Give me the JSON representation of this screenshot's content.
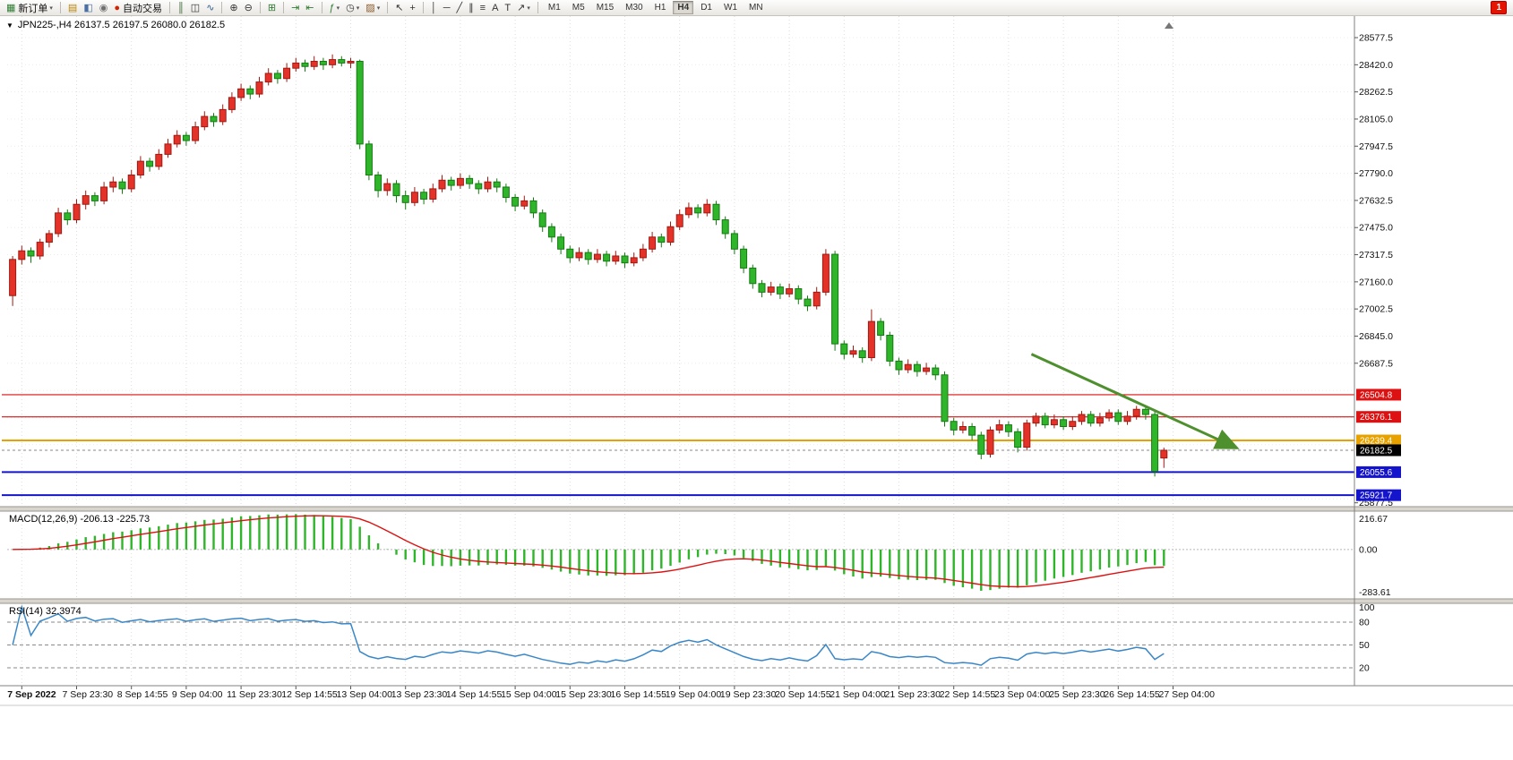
{
  "toolbar": {
    "caret_glyph": "▾",
    "badge": "1",
    "timeframes": [
      "M1",
      "M5",
      "M15",
      "M30",
      "H1",
      "H4",
      "D1",
      "W1",
      "MN"
    ],
    "active_timeframe": "H4",
    "items": [
      {
        "type": "button",
        "name": "new-order-button",
        "icon": "new-order-icon",
        "glyph": "▦",
        "color": "#2e7d32",
        "label": "新订单",
        "caret": true
      },
      {
        "type": "sep"
      },
      {
        "type": "icon",
        "name": "charts-icon",
        "glyph": "▤",
        "color": "#b8860b"
      },
      {
        "type": "icon",
        "name": "profiles-icon",
        "glyph": "◧",
        "color": "#4a6fa5"
      },
      {
        "type": "icon",
        "name": "market-depth-icon",
        "glyph": "◉",
        "color": "#707070"
      },
      {
        "type": "button",
        "name": "auto-trading-button",
        "icon": "auto-trading-icon",
        "glyph": "●",
        "color": "#d42300",
        "label": "自动交易"
      },
      {
        "type": "sep"
      },
      {
        "type": "icon",
        "name": "bar-chart-icon",
        "glyph": "║",
        "color": "#37652f"
      },
      {
        "type": "icon",
        "name": "candlestick-chart-icon",
        "glyph": "◫",
        "color": "#333333"
      },
      {
        "type": "icon",
        "name": "line-chart-icon",
        "glyph": "∿",
        "color": "#2f5e8f"
      },
      {
        "type": "sep"
      },
      {
        "type": "icon",
        "name": "zoom-in-icon",
        "glyph": "⊕",
        "color": "#333333"
      },
      {
        "type": "icon",
        "name": "zoom-out-icon",
        "glyph": "⊖",
        "color": "#333333"
      },
      {
        "type": "sep"
      },
      {
        "type": "icon",
        "name": "tile-windows-icon",
        "glyph": "⊞",
        "color": "#2e7d32"
      },
      {
        "type": "sep"
      },
      {
        "type": "icon",
        "name": "auto-scroll-icon",
        "glyph": "⇥",
        "color": "#2e7d32"
      },
      {
        "type": "icon",
        "name": "chart-shift-icon",
        "glyph": "⇤",
        "color": "#2e7d32"
      },
      {
        "type": "sep"
      },
      {
        "type": "icon",
        "name": "indicators-icon",
        "glyph": "ƒ",
        "color": "#2e7d32",
        "caret": true
      },
      {
        "type": "icon",
        "name": "periods-icon",
        "glyph": "◷",
        "color": "#333333",
        "caret": true
      },
      {
        "type": "icon",
        "name": "templates-icon",
        "glyph": "▨",
        "color": "#8a5a2a",
        "caret": true
      },
      {
        "type": "sep"
      },
      {
        "type": "icon",
        "name": "cursor-icon",
        "glyph": "↖",
        "color": "#333333"
      },
      {
        "type": "icon",
        "name": "crosshair-icon",
        "glyph": "+",
        "color": "#333333"
      },
      {
        "type": "sep"
      },
      {
        "type": "icon",
        "name": "vertical-line-icon",
        "glyph": "│",
        "color": "#333333"
      },
      {
        "type": "icon",
        "name": "horizontal-line-icon",
        "glyph": "─",
        "color": "#333333"
      },
      {
        "type": "icon",
        "name": "trendline-icon",
        "glyph": "╱",
        "color": "#333333"
      },
      {
        "type": "icon",
        "name": "channel-icon",
        "glyph": "∥",
        "color": "#333333"
      },
      {
        "type": "icon",
        "name": "fibonacci-icon",
        "glyph": "≡",
        "color": "#333333"
      },
      {
        "type": "icon",
        "name": "text-icon",
        "glyph": "A",
        "color": "#333333"
      },
      {
        "type": "icon",
        "name": "text-label-icon",
        "glyph": "T",
        "color": "#333333"
      },
      {
        "type": "icon",
        "name": "arrows-icon",
        "glyph": "↗",
        "color": "#333333",
        "caret": true
      },
      {
        "type": "sep"
      },
      {
        "type": "timeframes"
      },
      {
        "type": "spacer"
      },
      {
        "type": "badge"
      }
    ]
  },
  "chart": {
    "title": "JPN225-,H4 26137.5 26197.5 26080.0 26182.5",
    "symbol": "JPN225-",
    "period": "H4",
    "ohlc": {
      "open": "26137.5",
      "high": "26197.5",
      "low": "26080.0",
      "close": "26182.5"
    },
    "collapse_glyph": "▼",
    "macd_label": "MACD(12,26,9) -206.13 -225.73",
    "rsi_label": "RSI(14) 32.3974"
  },
  "chart_data": {
    "type": "candlestick",
    "symbol": "JPN225-",
    "period": "H4",
    "ylim": [
      25855,
      28640
    ],
    "up_color": "#e53228",
    "up_stroke": "#9e1a12",
    "down_color": "#2fb52a",
    "down_stroke": "#157a12",
    "price_axis_labels": [
      "28577.5",
      "28420.0",
      "28262.5",
      "28105.0",
      "27947.5",
      "27790.0",
      "27632.5",
      "27475.0",
      "27317.5",
      "27160.0",
      "27002.5",
      "26845.0",
      "26687.5",
      "25877.5"
    ],
    "time_axis_labels": [
      "7 Sep 2022",
      "7 Sep 23:30",
      "8 Sep 14:55",
      "9 Sep 04:00",
      "11 Sep 23:30",
      "12 Sep 14:55",
      "13 Sep 04:00",
      "13 Sep 23:30",
      "14 Sep 14:55",
      "15 Sep 04:00",
      "15 Sep 23:30",
      "16 Sep 14:55",
      "19 Sep 04:00",
      "19 Sep 23:30",
      "20 Sep 14:55",
      "21 Sep 04:00",
      "21 Sep 23:30",
      "22 Sep 14:55",
      "23 Sep 04:00",
      "25 Sep 23:30",
      "26 Sep 14:55",
      "27 Sep 04:00"
    ],
    "hlines": [
      {
        "price": 26504.8,
        "label": "26504.8",
        "color": "#dd1111",
        "width": 1.2
      },
      {
        "price": 26376.1,
        "label": "26376.1",
        "color": "#dd1111",
        "width": 1.2
      },
      {
        "price": 26239.4,
        "label": "26239.4",
        "color": "#e8a200",
        "width": 2
      },
      {
        "price": 26055.6,
        "label": "26055.6",
        "color": "#1414cc",
        "width": 2
      },
      {
        "price": 25921.7,
        "label": "25921.7",
        "color": "#1414cc",
        "width": 2
      }
    ],
    "current_price": {
      "value": 26182.5,
      "label": "26182.5",
      "box_color": "#000000"
    },
    "trend_arrow": {
      "from_index": 111.5,
      "from_price": 26740,
      "to_index": 134,
      "to_price": 26195,
      "color": "#4e8f2e",
      "width": 3
    },
    "indicators": [
      {
        "name": "MACD",
        "label": "MACD(12,26,9) -206.13 -225.73",
        "params": [
          12,
          26,
          9
        ],
        "displayed_values": [
          "-206.13",
          "-225.73"
        ],
        "scale_labels": [
          "216.67",
          "0.00",
          "-283.61"
        ],
        "ylim": [
          -283.61,
          216.67
        ],
        "histogram_color": "#2fb52a",
        "signal_color": "#dd1111"
      },
      {
        "name": "RSI",
        "label": "RSI(14) 32.3974",
        "params": [
          14
        ],
        "displayed_value": "32.3974",
        "scale_labels": [
          "100",
          "80",
          "50",
          "20"
        ],
        "levels": [
          80,
          50,
          20
        ],
        "line_color": "#3a87c8"
      }
    ],
    "candles": [
      [
        27080,
        27310,
        27020,
        27290
      ],
      [
        27290,
        27370,
        27260,
        27340
      ],
      [
        27340,
        27360,
        27270,
        27310
      ],
      [
        27310,
        27410,
        27290,
        27390
      ],
      [
        27390,
        27460,
        27360,
        27440
      ],
      [
        27440,
        27590,
        27420,
        27560
      ],
      [
        27560,
        27580,
        27490,
        27520
      ],
      [
        27520,
        27640,
        27500,
        27610
      ],
      [
        27610,
        27690,
        27580,
        27660
      ],
      [
        27660,
        27680,
        27600,
        27630
      ],
      [
        27630,
        27740,
        27610,
        27710
      ],
      [
        27710,
        27770,
        27680,
        27740
      ],
      [
        27740,
        27760,
        27670,
        27700
      ],
      [
        27700,
        27810,
        27680,
        27780
      ],
      [
        27780,
        27890,
        27760,
        27860
      ],
      [
        27860,
        27880,
        27800,
        27830
      ],
      [
        27830,
        27930,
        27810,
        27900
      ],
      [
        27900,
        27990,
        27880,
        27960
      ],
      [
        27960,
        28040,
        27940,
        28010
      ],
      [
        28010,
        28030,
        27950,
        27980
      ],
      [
        27980,
        28090,
        27960,
        28060
      ],
      [
        28060,
        28150,
        28040,
        28120
      ],
      [
        28120,
        28140,
        28060,
        28090
      ],
      [
        28090,
        28190,
        28070,
        28160
      ],
      [
        28160,
        28260,
        28140,
        28230
      ],
      [
        28230,
        28310,
        28210,
        28280
      ],
      [
        28280,
        28300,
        28220,
        28250
      ],
      [
        28250,
        28350,
        28230,
        28320
      ],
      [
        28320,
        28400,
        28300,
        28370
      ],
      [
        28370,
        28390,
        28310,
        28340
      ],
      [
        28340,
        28430,
        28320,
        28400
      ],
      [
        28400,
        28460,
        28380,
        28430
      ],
      [
        28430,
        28450,
        28380,
        28410
      ],
      [
        28410,
        28470,
        28390,
        28440
      ],
      [
        28440,
        28460,
        28390,
        28420
      ],
      [
        28420,
        28480,
        28400,
        28450
      ],
      [
        28450,
        28470,
        28410,
        28430
      ],
      [
        28430,
        28460,
        28400,
        28440
      ],
      [
        28440,
        28450,
        27930,
        27960
      ],
      [
        27960,
        27980,
        27750,
        27780
      ],
      [
        27780,
        27800,
        27650,
        27690
      ],
      [
        27690,
        27760,
        27660,
        27730
      ],
      [
        27730,
        27750,
        27620,
        27660
      ],
      [
        27660,
        27690,
        27580,
        27620
      ],
      [
        27620,
        27710,
        27600,
        27680
      ],
      [
        27680,
        27700,
        27610,
        27640
      ],
      [
        27640,
        27730,
        27620,
        27700
      ],
      [
        27700,
        27780,
        27680,
        27750
      ],
      [
        27750,
        27770,
        27690,
        27720
      ],
      [
        27720,
        27790,
        27700,
        27760
      ],
      [
        27760,
        27780,
        27700,
        27730
      ],
      [
        27730,
        27750,
        27670,
        27700
      ],
      [
        27700,
        27770,
        27680,
        27740
      ],
      [
        27740,
        27760,
        27680,
        27710
      ],
      [
        27710,
        27730,
        27620,
        27650
      ],
      [
        27650,
        27670,
        27570,
        27600
      ],
      [
        27600,
        27660,
        27580,
        27630
      ],
      [
        27630,
        27650,
        27530,
        27560
      ],
      [
        27560,
        27580,
        27450,
        27480
      ],
      [
        27480,
        27500,
        27390,
        27420
      ],
      [
        27420,
        27440,
        27320,
        27350
      ],
      [
        27350,
        27370,
        27270,
        27300
      ],
      [
        27300,
        27360,
        27280,
        27330
      ],
      [
        27330,
        27350,
        27260,
        27290
      ],
      [
        27290,
        27350,
        27270,
        27320
      ],
      [
        27320,
        27340,
        27250,
        27280
      ],
      [
        27280,
        27340,
        27260,
        27310
      ],
      [
        27310,
        27330,
        27240,
        27270
      ],
      [
        27270,
        27330,
        27250,
        27300
      ],
      [
        27300,
        27380,
        27280,
        27350
      ],
      [
        27350,
        27450,
        27330,
        27420
      ],
      [
        27420,
        27440,
        27360,
        27390
      ],
      [
        27390,
        27510,
        27370,
        27480
      ],
      [
        27480,
        27580,
        27460,
        27550
      ],
      [
        27550,
        27620,
        27530,
        27590
      ],
      [
        27590,
        27610,
        27530,
        27560
      ],
      [
        27560,
        27640,
        27540,
        27610
      ],
      [
        27610,
        27630,
        27490,
        27520
      ],
      [
        27520,
        27540,
        27410,
        27440
      ],
      [
        27440,
        27460,
        27320,
        27350
      ],
      [
        27350,
        27370,
        27210,
        27240
      ],
      [
        27240,
        27260,
        27120,
        27150
      ],
      [
        27150,
        27170,
        27070,
        27100
      ],
      [
        27100,
        27160,
        27080,
        27130
      ],
      [
        27130,
        27150,
        27060,
        27090
      ],
      [
        27090,
        27150,
        27070,
        27120
      ],
      [
        27120,
        27140,
        27030,
        27060
      ],
      [
        27060,
        27080,
        26990,
        27020
      ],
      [
        27020,
        27130,
        27000,
        27100
      ],
      [
        27100,
        27350,
        27080,
        27320
      ],
      [
        27320,
        27340,
        26760,
        26800
      ],
      [
        26800,
        26820,
        26710,
        26740
      ],
      [
        26740,
        26790,
        26720,
        26760
      ],
      [
        26760,
        26780,
        26690,
        26720
      ],
      [
        26720,
        27000,
        26700,
        26930
      ],
      [
        26930,
        26950,
        26820,
        26850
      ],
      [
        26850,
        26870,
        26670,
        26700
      ],
      [
        26700,
        26720,
        26620,
        26650
      ],
      [
        26650,
        26710,
        26630,
        26680
      ],
      [
        26680,
        26700,
        26610,
        26640
      ],
      [
        26640,
        26690,
        26620,
        26660
      ],
      [
        26660,
        26680,
        26590,
        26620
      ],
      [
        26620,
        26640,
        26320,
        26350
      ],
      [
        26350,
        26370,
        26270,
        26300
      ],
      [
        26300,
        26350,
        26280,
        26320
      ],
      [
        26320,
        26340,
        26240,
        26270
      ],
      [
        26270,
        26290,
        26130,
        26160
      ],
      [
        26160,
        26320,
        26140,
        26300
      ],
      [
        26300,
        26360,
        26280,
        26330
      ],
      [
        26330,
        26350,
        26260,
        26290
      ],
      [
        26290,
        26310,
        26170,
        26200
      ],
      [
        26200,
        26360,
        26180,
        26340
      ],
      [
        26340,
        26400,
        26320,
        26380
      ],
      [
        26380,
        26400,
        26310,
        26330
      ],
      [
        26330,
        26390,
        26310,
        26360
      ],
      [
        26360,
        26380,
        26300,
        26320
      ],
      [
        26320,
        26380,
        26300,
        26350
      ],
      [
        26350,
        26410,
        26330,
        26390
      ],
      [
        26390,
        26410,
        26320,
        26340
      ],
      [
        26340,
        26400,
        26320,
        26370
      ],
      [
        26370,
        26420,
        26350,
        26400
      ],
      [
        26400,
        26420,
        26330,
        26350
      ],
      [
        26350,
        26410,
        26330,
        26380
      ],
      [
        26380,
        26440,
        26360,
        26420
      ],
      [
        26420,
        26440,
        26360,
        26390
      ],
      [
        26390,
        26410,
        26030,
        26060
      ],
      [
        26137.5,
        26197.5,
        26080.0,
        26182.5
      ]
    ]
  }
}
